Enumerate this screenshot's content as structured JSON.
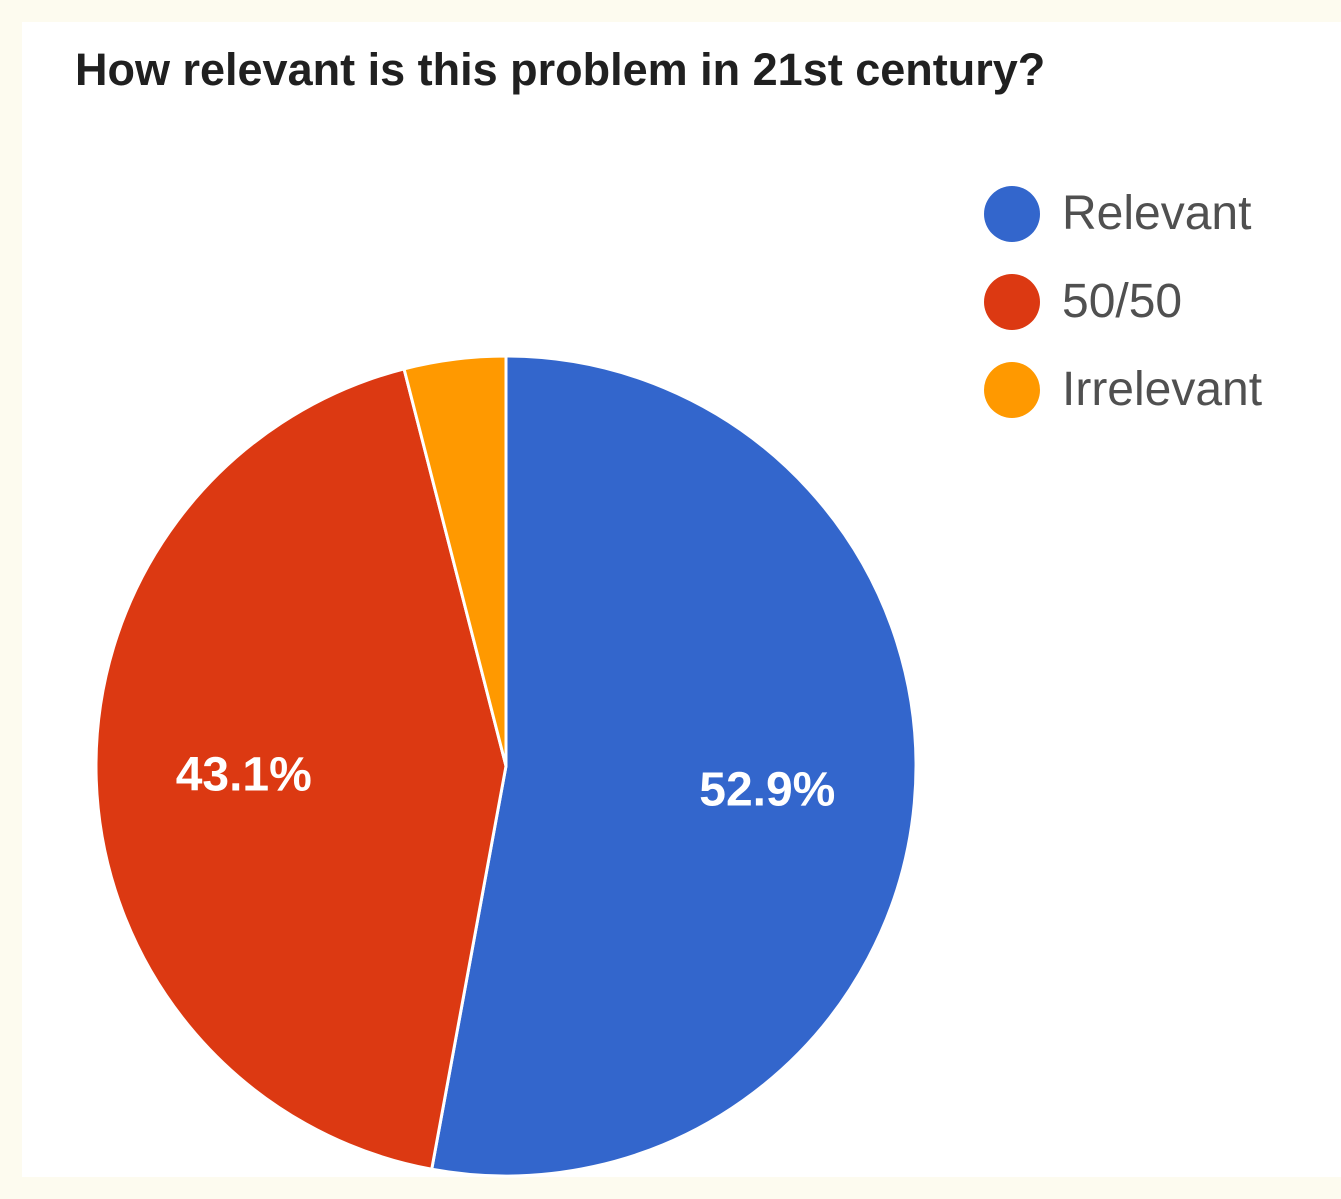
{
  "chart_data": {
    "type": "pie",
    "title": "How relevant is this problem in 21st century?",
    "slices": [
      {
        "label": "Relevant",
        "value": 52.9,
        "color": "#3366cc",
        "display": "52.9%"
      },
      {
        "label": "50/50",
        "value": 43.1,
        "color": "#dc3912",
        "display": "43.1%"
      },
      {
        "label": "Irrelevant",
        "value": 4.0,
        "color": "#ff9900",
        "display": ""
      }
    ],
    "legend_position": "top-right"
  }
}
